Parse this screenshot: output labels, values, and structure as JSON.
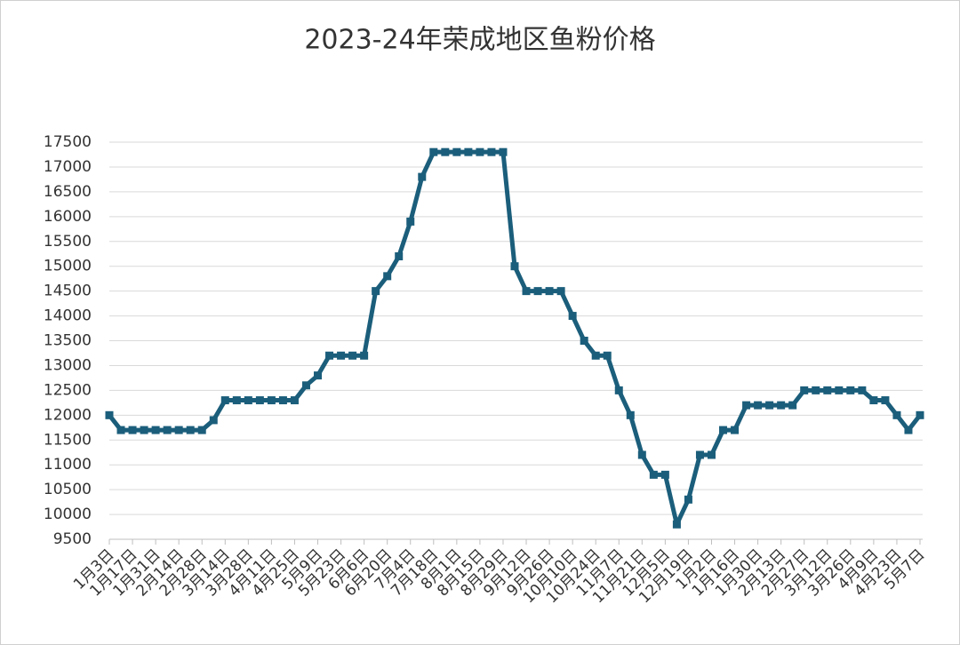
{
  "chart_data": {
    "type": "line",
    "title": "2023-24年荣成地区鱼粉价格",
    "categories": [
      "1月3日",
      null,
      "1月17日",
      null,
      "1月31日",
      null,
      "2月14日",
      null,
      "2月28日",
      null,
      "3月14日",
      null,
      "3月28日",
      null,
      "4月11日",
      null,
      "4月25日",
      null,
      "5月9日",
      null,
      "5月23日",
      null,
      "6月6日",
      null,
      "6月20日",
      null,
      "7月4日",
      null,
      "7月18日",
      null,
      "8月1日",
      null,
      "8月15日",
      null,
      "8月29日",
      null,
      "9月12日",
      null,
      "9月26日",
      null,
      "10月10日",
      null,
      "10月24日",
      null,
      "11月7日",
      null,
      "11月21日",
      null,
      "12月5日",
      null,
      "12月19日",
      null,
      "1月2日",
      null,
      "1月16日",
      null,
      "1月30日",
      null,
      "2月13日",
      null,
      "2月27日",
      null,
      "3月12日",
      null,
      "3月26日",
      null,
      "4月9日",
      null,
      "4月23日",
      null,
      "5月7日"
    ],
    "series": [
      {
        "name": "鱼粉价格",
        "color": "#1b5e7b",
        "values": [
          12000,
          11700,
          11700,
          11700,
          11700,
          11700,
          11700,
          11700,
          11700,
          11900,
          12300,
          12300,
          12300,
          12300,
          12300,
          12300,
          12300,
          12600,
          12800,
          13200,
          13200,
          13200,
          13200,
          14500,
          14800,
          15200,
          15900,
          16800,
          17300,
          17300,
          17300,
          17300,
          17300,
          17300,
          17300,
          15000,
          14500,
          14500,
          14500,
          14500,
          14000,
          13500,
          13200,
          13200,
          12500,
          12000,
          11200,
          10800,
          10800,
          9800,
          10300,
          11200,
          11200,
          11700,
          11700,
          12200,
          12200,
          12200,
          12200,
          12200,
          12500,
          12500,
          12500,
          12500,
          12500,
          12500,
          12300,
          12300,
          12000,
          11700,
          12000
        ]
      }
    ],
    "ylim": [
      9500,
      17500
    ],
    "yticks": [
      9500,
      10000,
      10500,
      11000,
      11500,
      12000,
      12500,
      13000,
      13500,
      14000,
      14500,
      15000,
      15500,
      16000,
      16500,
      17000,
      17500
    ],
    "grid": true
  }
}
